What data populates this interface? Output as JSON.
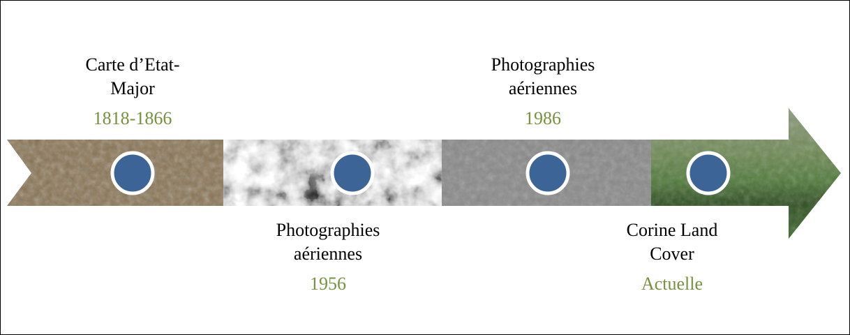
{
  "events": [
    {
      "label": "Carte d’Etat-Major",
      "date": "1818-1866"
    },
    {
      "label": "Photographies aériennes",
      "date": "1956"
    },
    {
      "label": "Photographies aériennes",
      "date": "1986"
    },
    {
      "label": "Corine Land Cover",
      "date": "Actuelle"
    }
  ]
}
